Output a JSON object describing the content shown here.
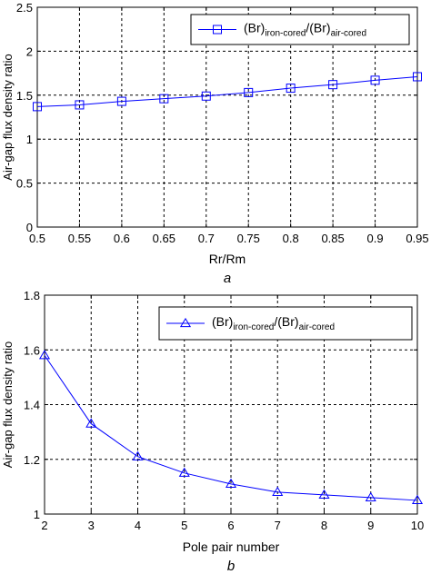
{
  "chart_data": [
    {
      "type": "line",
      "caption": "a",
      "xlabel": "Rr/Rm",
      "ylabel": "Air-gap flux density ratio",
      "xlim": [
        0.5,
        0.95
      ],
      "ylim": [
        0,
        2.5
      ],
      "xticks": [
        0.5,
        0.55,
        0.6,
        0.65,
        0.7,
        0.75,
        0.8,
        0.85,
        0.9,
        0.95
      ],
      "xtick_labels": [
        "0.5",
        "0.55",
        "0.6",
        "0.65",
        "0.7",
        "0.75",
        "0.8",
        "0.85",
        "0.9",
        "0.95"
      ],
      "yticks": [
        0,
        0.5,
        1,
        1.5,
        2,
        2.5
      ],
      "ytick_labels": [
        "0",
        "0.5",
        "1",
        "1.5",
        "2",
        "2.5"
      ],
      "grid": true,
      "legend_position": "top-right",
      "color": "#0000ff",
      "marker": "square",
      "series": [
        {
          "legend": {
            "base1": "(Br)",
            "sub1": "iron-cored",
            "sep": "/(Br)",
            "sub2": "air-cored"
          },
          "x": [
            0.5,
            0.55,
            0.6,
            0.65,
            0.7,
            0.75,
            0.8,
            0.85,
            0.9,
            0.95
          ],
          "values": [
            1.37,
            1.39,
            1.43,
            1.46,
            1.49,
            1.53,
            1.58,
            1.62,
            1.67,
            1.71
          ]
        }
      ]
    },
    {
      "type": "line",
      "caption": "b",
      "xlabel": "Pole pair number",
      "ylabel": "Air-gap flux density ratio",
      "xlim": [
        2,
        10
      ],
      "ylim": [
        1,
        1.8
      ],
      "xticks": [
        2,
        3,
        4,
        5,
        6,
        7,
        8,
        9,
        10
      ],
      "xtick_labels": [
        "2",
        "3",
        "4",
        "5",
        "6",
        "7",
        "8",
        "9",
        "10"
      ],
      "yticks": [
        1,
        1.2,
        1.4,
        1.6,
        1.8
      ],
      "ytick_labels": [
        "1",
        "1.2",
        "1.4",
        "1.6",
        "1.8"
      ],
      "grid": true,
      "legend_position": "top-right",
      "color": "#0000ff",
      "marker": "triangle",
      "series": [
        {
          "legend": {
            "base1": "(Br)",
            "sub1": "iron-cored",
            "sep": "/(Br)",
            "sub2": "air-cored"
          },
          "x": [
            2,
            3,
            4,
            5,
            6,
            7,
            8,
            9,
            10
          ],
          "values": [
            1.58,
            1.33,
            1.21,
            1.15,
            1.11,
            1.08,
            1.07,
            1.06,
            1.05
          ]
        }
      ]
    }
  ]
}
